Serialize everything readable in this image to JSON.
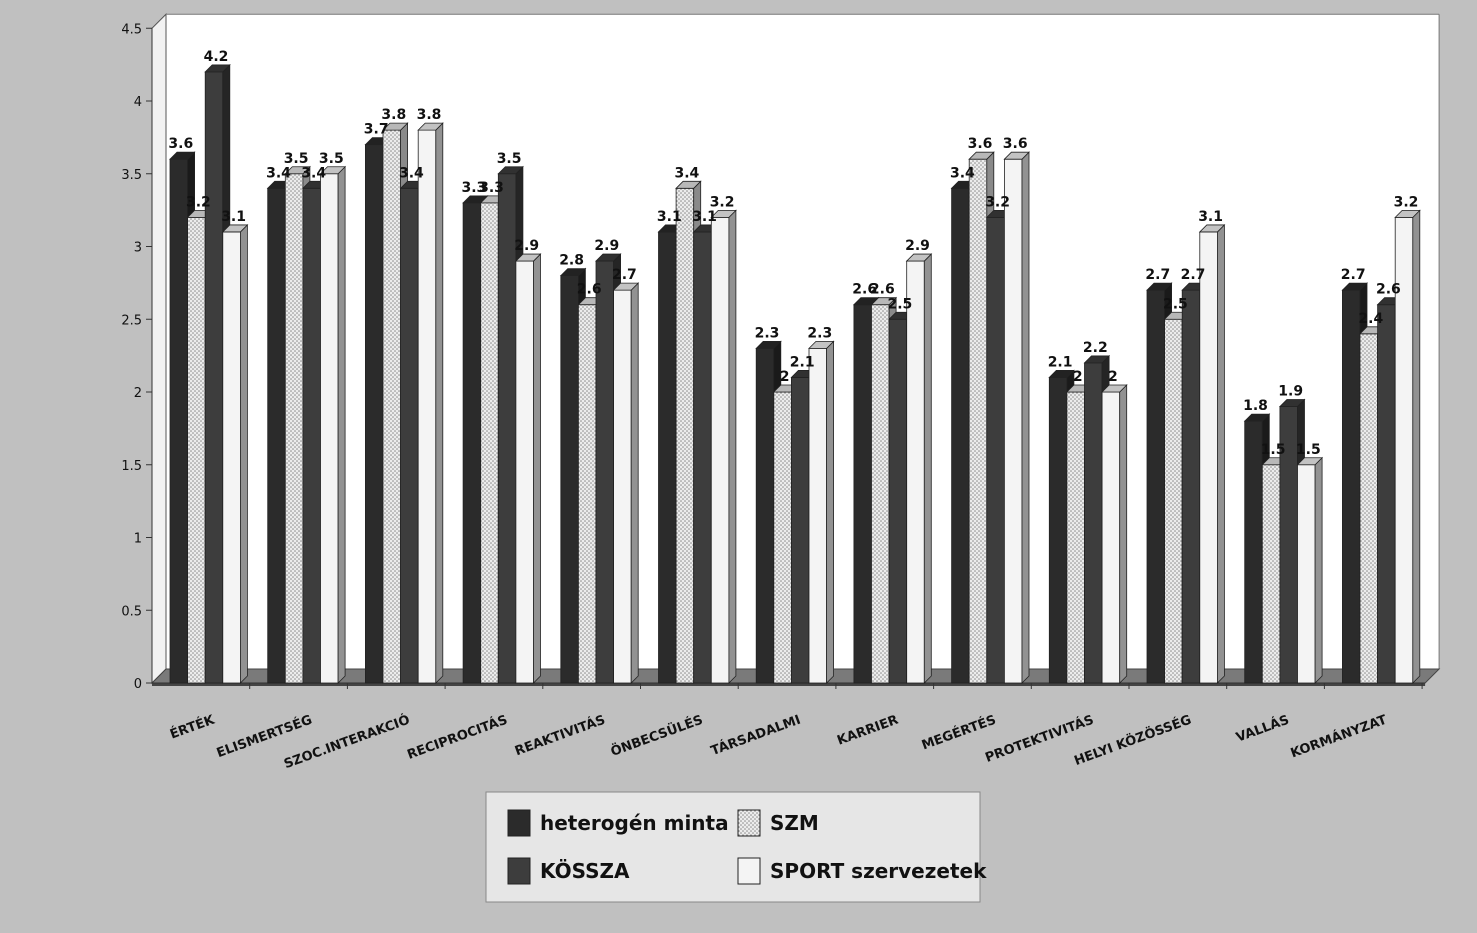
{
  "chart_data": {
    "type": "bar",
    "title": "",
    "xlabel": "",
    "ylabel": "",
    "ylim": [
      0,
      4.5
    ],
    "yticks": [
      "0",
      "0.5",
      "1",
      "1.5",
      "2",
      "2.5",
      "3",
      "3.5",
      "4",
      "4.5"
    ],
    "grid": false,
    "legend_position": "bottom-center",
    "categories": [
      "ÉRTÉK",
      "ELISMERTSÉG",
      "SZOC.INTERAKCIÓ",
      "RECIPROCITÁS",
      "REAKTIVITÁS",
      "ÖNBECSÜLÉS",
      "TÁRSADALMI",
      "KARRIER",
      "MEGÉRTÉS",
      "PROTEKTIVITÁS",
      "HELYI KÖZÖSSÉG",
      "VALLÁS",
      "KORMÁNYZAT"
    ],
    "series": [
      {
        "name": "heterogén minta",
        "color": "#2b2b2b",
        "values": [
          3.6,
          3.4,
          3.7,
          3.3,
          2.8,
          3.1,
          2.3,
          2.6,
          3.4,
          2.1,
          2.7,
          1.8,
          2.7
        ],
        "labels": [
          "3.6",
          "3.4",
          "3.7",
          "3.3",
          "2.8",
          "3.1",
          "2.3",
          "2.6",
          "3.4",
          "2.1",
          "2.7",
          "1.8",
          "2.7"
        ]
      },
      {
        "name": "SZM",
        "color": "#e6e6e6",
        "pattern": "dotted",
        "values": [
          3.2,
          3.5,
          3.8,
          3.3,
          2.6,
          3.4,
          2.0,
          2.6,
          3.6,
          2.0,
          2.5,
          1.5,
          2.4
        ],
        "labels": [
          "3.2",
          "3.5",
          "3.8",
          "3.3",
          "2.6",
          "3.4",
          "2",
          "2.6",
          "3.6",
          "2",
          "2.5",
          "1.5",
          "2.4"
        ]
      },
      {
        "name": "KÖSSZA",
        "color": "#3d3d3d",
        "values": [
          4.2,
          3.4,
          3.4,
          3.5,
          2.9,
          3.1,
          2.1,
          2.5,
          3.2,
          2.2,
          2.7,
          1.9,
          2.6
        ],
        "labels": [
          "4.2",
          "3.4",
          "3.4",
          "3.5",
          "2.9",
          "3.1",
          "2.1",
          "2.5",
          "3.2",
          "2.2",
          "2.7",
          "1.9",
          "2.6"
        ]
      },
      {
        "name": "SPORT szervezetek",
        "color": "#f4f4f4",
        "values": [
          3.1,
          3.5,
          3.8,
          2.9,
          2.7,
          3.2,
          2.3,
          2.9,
          3.6,
          2.0,
          3.1,
          1.5,
          3.2
        ],
        "labels": [
          "3.1",
          "3.5",
          "3.8",
          "2.9",
          "2.7",
          "3.2",
          "2.3",
          "2.9",
          "3.6",
          "2",
          "3.1",
          "1.5",
          "3.2"
        ]
      }
    ],
    "legend_order": [
      0,
      1,
      2,
      3
    ]
  }
}
